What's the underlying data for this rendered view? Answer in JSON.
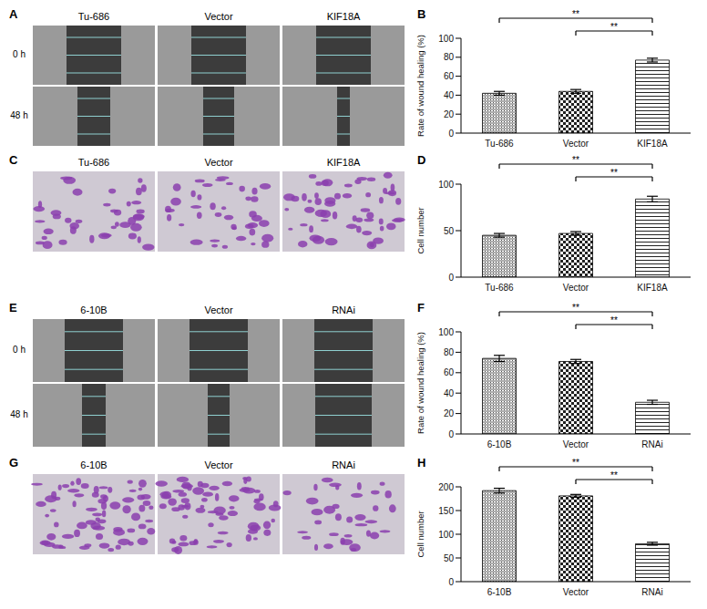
{
  "image_panels": [
    {
      "label": "A",
      "columns": [
        "Tu-686",
        "Vector",
        "KIF18A"
      ],
      "rows": [
        "0 h",
        "48 h"
      ]
    },
    {
      "label": "C",
      "columns": [
        "Tu-686",
        "Vector",
        "KIF18A"
      ]
    },
    {
      "label": "E",
      "columns": [
        "6-10B",
        "Vector",
        "RNAi"
      ],
      "rows": [
        "0 h",
        "48 h"
      ]
    },
    {
      "label": "G",
      "columns": [
        "6-10B",
        "Vector",
        "RNAi"
      ]
    }
  ],
  "chart_data": [
    {
      "panel": "B",
      "type": "bar",
      "y_label": "Rate of wound healing (%)",
      "categories": [
        "Tu-686",
        "Vector",
        "KIF18A"
      ],
      "values": [
        42,
        44,
        77
      ],
      "errors": [
        2,
        2,
        2
      ],
      "ylim": [
        0,
        100
      ],
      "yticks": [
        0,
        20,
        40,
        60,
        80,
        100
      ],
      "significance": [
        {
          "pair": [
            "Tu-686",
            "KIF18A"
          ],
          "label": "**"
        },
        {
          "pair": [
            "Vector",
            "KIF18A"
          ],
          "label": "**"
        }
      ]
    },
    {
      "panel": "D",
      "type": "bar",
      "y_label": "Cell number",
      "categories": [
        "Tu-686",
        "Vector",
        "KIF18A"
      ],
      "values": [
        45,
        47,
        84
      ],
      "errors": [
        2,
        2,
        3
      ],
      "ylim": [
        0,
        100
      ],
      "yticks": [
        0,
        50,
        100
      ],
      "significance": [
        {
          "pair": [
            "Tu-686",
            "KIF18A"
          ],
          "label": "**"
        },
        {
          "pair": [
            "Vector",
            "KIF18A"
          ],
          "label": "**"
        }
      ]
    },
    {
      "panel": "F",
      "type": "bar",
      "y_label": "Rate of wound healing (%)",
      "categories": [
        "6-10B",
        "Vector",
        "RNAi"
      ],
      "values": [
        74,
        71,
        31
      ],
      "errors": [
        3,
        2,
        2
      ],
      "ylim": [
        0,
        100
      ],
      "yticks": [
        0,
        20,
        40,
        60,
        80,
        100
      ],
      "significance": [
        {
          "pair": [
            "6-10B",
            "RNAi"
          ],
          "label": "**"
        },
        {
          "pair": [
            "Vector",
            "RNAi"
          ],
          "label": "**"
        }
      ]
    },
    {
      "panel": "H",
      "type": "bar",
      "y_label": "Cell number",
      "categories": [
        "6-10B",
        "Vector",
        "RNAi"
      ],
      "values": [
        192,
        181,
        80
      ],
      "errors": [
        5,
        3,
        3
      ],
      "ylim": [
        0,
        200
      ],
      "yticks": [
        0,
        50,
        100,
        150,
        200
      ],
      "significance": [
        {
          "pair": [
            "6-10B",
            "RNAi"
          ],
          "label": "**"
        },
        {
          "pair": [
            "Vector",
            "RNAi"
          ],
          "label": "**"
        }
      ]
    }
  ]
}
